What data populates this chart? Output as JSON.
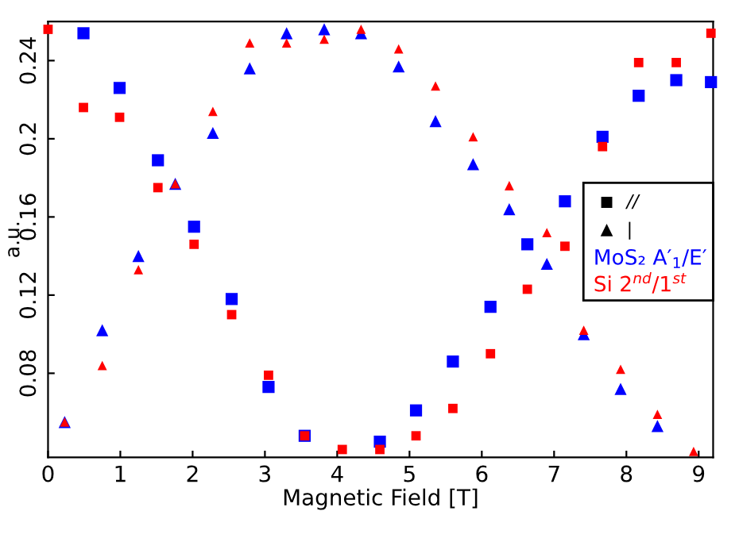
{
  "chart_data": {
    "type": "scatter",
    "xlabel": "Magnetic Field [T]",
    "ylabel": "a.u.",
    "xlim": [
      0,
      9.2
    ],
    "xticks": [
      0,
      1,
      2,
      3,
      4,
      5,
      6,
      7,
      8,
      9
    ],
    "ylim": [
      0.037,
      0.26
    ],
    "yticks": [
      0.08,
      0.12,
      0.16,
      0.2,
      0.24
    ],
    "grid": false,
    "annotations": [
      "//",
      "|",
      "MoS₂ A′$_{1}$/E′",
      "Si 2$^{nd}$/1$^{st}$"
    ],
    "series": [
      {
        "color": "#0000ff",
        "marker": "square",
        "x": [
          0.49,
          0.99,
          1.52,
          2.02,
          2.54,
          3.05,
          3.55,
          4.59,
          5.09,
          5.6,
          6.12,
          6.63,
          7.15,
          7.67,
          8.17,
          8.69,
          9.17
        ],
        "values": [
          0.254,
          0.226,
          0.189,
          0.155,
          0.118,
          0.073,
          0.048,
          0.045,
          0.061,
          0.086,
          0.114,
          0.146,
          0.168,
          0.201,
          0.222,
          0.23,
          0.229
        ]
      },
      {
        "color": "#0000ff",
        "marker": "triangle",
        "x": [
          0.23,
          0.75,
          1.25,
          1.76,
          2.28,
          2.79,
          3.3,
          3.82,
          4.33,
          4.85,
          5.36,
          5.88,
          6.38,
          6.9,
          7.41,
          7.92,
          8.43
        ],
        "values": [
          0.055,
          0.102,
          0.14,
          0.177,
          0.203,
          0.236,
          0.254,
          0.256,
          0.254,
          0.237,
          0.209,
          0.187,
          0.164,
          0.136,
          0.1,
          0.072,
          0.053
        ]
      },
      {
        "color": "#ff0000",
        "marker": "square",
        "x": [
          0,
          0.49,
          0.99,
          1.52,
          2.02,
          2.54,
          3.05,
          3.55,
          4.07,
          4.59,
          5.09,
          5.6,
          6.12,
          6.63,
          7.15,
          7.67,
          8.17,
          8.69,
          9.17
        ],
        "values": [
          0.256,
          0.216,
          0.211,
          0.175,
          0.146,
          0.11,
          0.079,
          0.048,
          0.041,
          0.041,
          0.048,
          0.062,
          0.09,
          0.123,
          0.145,
          0.196,
          0.239,
          0.239,
          0.254
        ]
      },
      {
        "color": "#ff0000",
        "marker": "triangle",
        "x": [
          0.23,
          0.75,
          1.25,
          1.76,
          2.28,
          2.79,
          3.3,
          3.82,
          4.33,
          4.85,
          5.36,
          5.88,
          6.38,
          6.9,
          7.41,
          7.92,
          8.43,
          8.93
        ],
        "values": [
          0.055,
          0.084,
          0.133,
          0.177,
          0.214,
          0.249,
          0.249,
          0.251,
          0.256,
          0.246,
          0.227,
          0.201,
          0.176,
          0.152,
          0.102,
          0.082,
          0.059,
          0.04
        ]
      }
    ]
  }
}
